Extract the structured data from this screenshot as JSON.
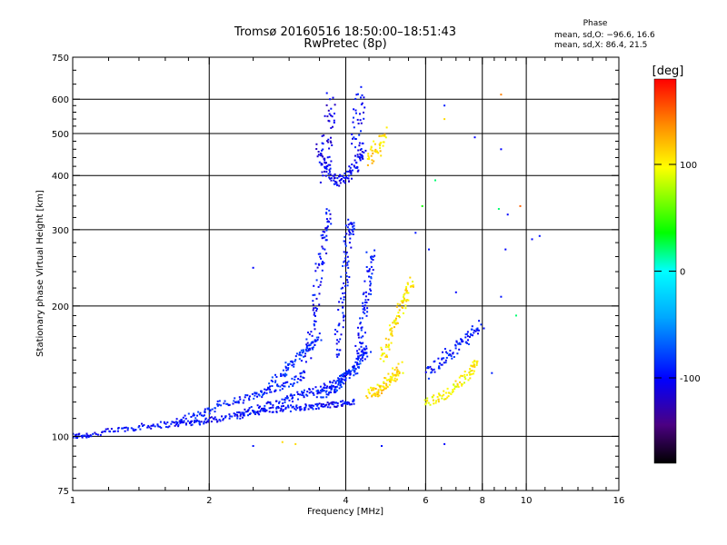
{
  "chart_data": {
    "type": "scatter",
    "title": "Tromsø 20160516 18:50:00–18:51:43",
    "subtitle": "RwPretec (8p)",
    "xlabel": "Frequency [MHz]",
    "ylabel": "Stationary phase Virtual Height [km]",
    "x_scale": "log",
    "y_scale": "log",
    "xlim": [
      1,
      16
    ],
    "ylim": [
      75,
      750
    ],
    "x_ticks": [
      1,
      2,
      4,
      6,
      8,
      10,
      16
    ],
    "y_ticks": [
      75,
      100,
      200,
      300,
      400,
      500,
      600,
      750
    ],
    "x_grid": [
      2,
      4,
      6,
      8,
      10
    ],
    "y_grid": [
      100,
      200,
      300,
      400,
      500,
      600
    ],
    "grid": true,
    "stats": {
      "heading": "Phase",
      "line_o": "mean, sd,O: −96.6, 16.6",
      "line_x": "mean, sd,X:  86.4, 21.5"
    },
    "colorbar": {
      "label": "[deg]",
      "ticks": [
        100,
        0,
        -100
      ],
      "range": [
        -180,
        180
      ],
      "colors": [
        "#000000",
        "#4b0082",
        "#0000ff",
        "#00a8ff",
        "#00ffff",
        "#00ff00",
        "#ffff00",
        "#ff8c00",
        "#ff0000"
      ]
    },
    "traces": [
      {
        "x": [
          1.0,
          1.1,
          1.3,
          1.5,
          1.7,
          1.9,
          2.1,
          2.4,
          2.7,
          3.0,
          3.3,
          3.6,
          3.9,
          4.2
        ],
        "y": [
          100,
          101,
          104,
          106,
          107,
          108,
          110,
          113,
          115,
          116,
          117,
          118,
          119,
          120
        ],
        "phase": -100,
        "jitter": 1.6
      },
      {
        "x": [
          1.7,
          1.9,
          2.1,
          2.4,
          2.7,
          3.0,
          3.3
        ],
        "y": [
          108,
          112,
          118,
          122,
          127,
          133,
          140
        ],
        "phase": -90,
        "jitter": 2.2
      },
      {
        "x": [
          2.3,
          2.6,
          2.9,
          3.2,
          3.5,
          3.8,
          4.1
        ],
        "y": [
          112,
          116,
          120,
          125,
          128,
          133,
          140
        ],
        "phase": -95,
        "jitter": 2.2
      },
      {
        "x": [
          2.6,
          2.9,
          3.1,
          3.3,
          3.5
        ],
        "y": [
          125,
          140,
          150,
          160,
          170
        ],
        "phase": -85,
        "jitter": 2.5
      },
      {
        "x": [
          3.3,
          3.4,
          3.5,
          3.6,
          3.7
        ],
        "y": [
          150,
          190,
          240,
          290,
          330
        ],
        "phase": -100,
        "jitter": 3.5
      },
      {
        "x": [
          3.5,
          3.7,
          3.9,
          4.1,
          4.3,
          4.5
        ],
        "y": [
          125,
          128,
          133,
          140,
          150,
          160
        ],
        "phase": -90,
        "jitter": 2.5
      },
      {
        "x": [
          3.8,
          3.9,
          4.0,
          4.05,
          4.1
        ],
        "y": [
          150,
          190,
          240,
          290,
          310
        ],
        "phase": -95,
        "jitter": 3.5
      },
      {
        "x": [
          4.2,
          4.3,
          4.4,
          4.5,
          4.55
        ],
        "y": [
          140,
          165,
          195,
          230,
          270
        ],
        "phase": -95,
        "jitter": 3.5
      },
      {
        "x": [
          3.5,
          3.6,
          3.8,
          4.0,
          4.2,
          4.4
        ],
        "y": [
          460,
          420,
          390,
          390,
          420,
          470
        ],
        "phase": -105,
        "jitter": 3.0
      },
      {
        "x": [
          3.6,
          3.65,
          3.7
        ],
        "y": [
          400,
          500,
          600
        ],
        "phase": -110,
        "jitter": 5.0
      },
      {
        "x": [
          4.2,
          4.25,
          4.3
        ],
        "y": [
          420,
          520,
          620
        ],
        "phase": -100,
        "jitter": 5.0
      },
      {
        "x": [
          4.5,
          4.7,
          4.9,
          5.1,
          5.3
        ],
        "y": [
          125,
          128,
          132,
          138,
          145
        ],
        "phase": 110,
        "jitter": 3.0
      },
      {
        "x": [
          4.8,
          5.0,
          5.2,
          5.4,
          5.6
        ],
        "y": [
          150,
          170,
          190,
          210,
          230
        ],
        "phase": 105,
        "jitter": 3.0
      },
      {
        "x": [
          4.5,
          4.7,
          4.9
        ],
        "y": [
          430,
          460,
          500
        ],
        "phase": 110,
        "jitter": 4.0
      },
      {
        "x": [
          6.0,
          6.5,
          7.0,
          7.5,
          7.8
        ],
        "y": [
          120,
          123,
          130,
          140,
          150
        ],
        "phase": 100,
        "jitter": 2.5
      },
      {
        "x": [
          6.0,
          6.5,
          7.0,
          7.5,
          8.0
        ],
        "y": [
          140,
          150,
          160,
          170,
          180
        ],
        "phase": -95,
        "jitter": 3.0
      }
    ],
    "scatter_points": [
      {
        "x": 2.5,
        "y": 95,
        "phase": -95
      },
      {
        "x": 2.9,
        "y": 97,
        "phase": 110
      },
      {
        "x": 3.1,
        "y": 96,
        "phase": 110
      },
      {
        "x": 2.5,
        "y": 245,
        "phase": -100
      },
      {
        "x": 4.8,
        "y": 95,
        "phase": -95
      },
      {
        "x": 6.6,
        "y": 96,
        "phase": -100
      },
      {
        "x": 5.7,
        "y": 295,
        "phase": -95
      },
      {
        "x": 5.9,
        "y": 340,
        "phase": 40
      },
      {
        "x": 6.3,
        "y": 390,
        "phase": 20
      },
      {
        "x": 6.6,
        "y": 580,
        "phase": -90
      },
      {
        "x": 6.6,
        "y": 540,
        "phase": 110
      },
      {
        "x": 7.7,
        "y": 490,
        "phase": -100
      },
      {
        "x": 8.8,
        "y": 460,
        "phase": -100
      },
      {
        "x": 8.8,
        "y": 615,
        "phase": 140
      },
      {
        "x": 8.7,
        "y": 335,
        "phase": 20
      },
      {
        "x": 9.1,
        "y": 325,
        "phase": -100
      },
      {
        "x": 9.7,
        "y": 340,
        "phase": 150
      },
      {
        "x": 10.3,
        "y": 285,
        "phase": -100
      },
      {
        "x": 10.7,
        "y": 290,
        "phase": -95
      },
      {
        "x": 9.0,
        "y": 270,
        "phase": -100
      },
      {
        "x": 8.8,
        "y": 210,
        "phase": -95
      },
      {
        "x": 9.5,
        "y": 190,
        "phase": 20
      },
      {
        "x": 8.4,
        "y": 140,
        "phase": -90
      },
      {
        "x": 7.0,
        "y": 215,
        "phase": -100
      },
      {
        "x": 6.1,
        "y": 270,
        "phase": -95
      }
    ]
  }
}
